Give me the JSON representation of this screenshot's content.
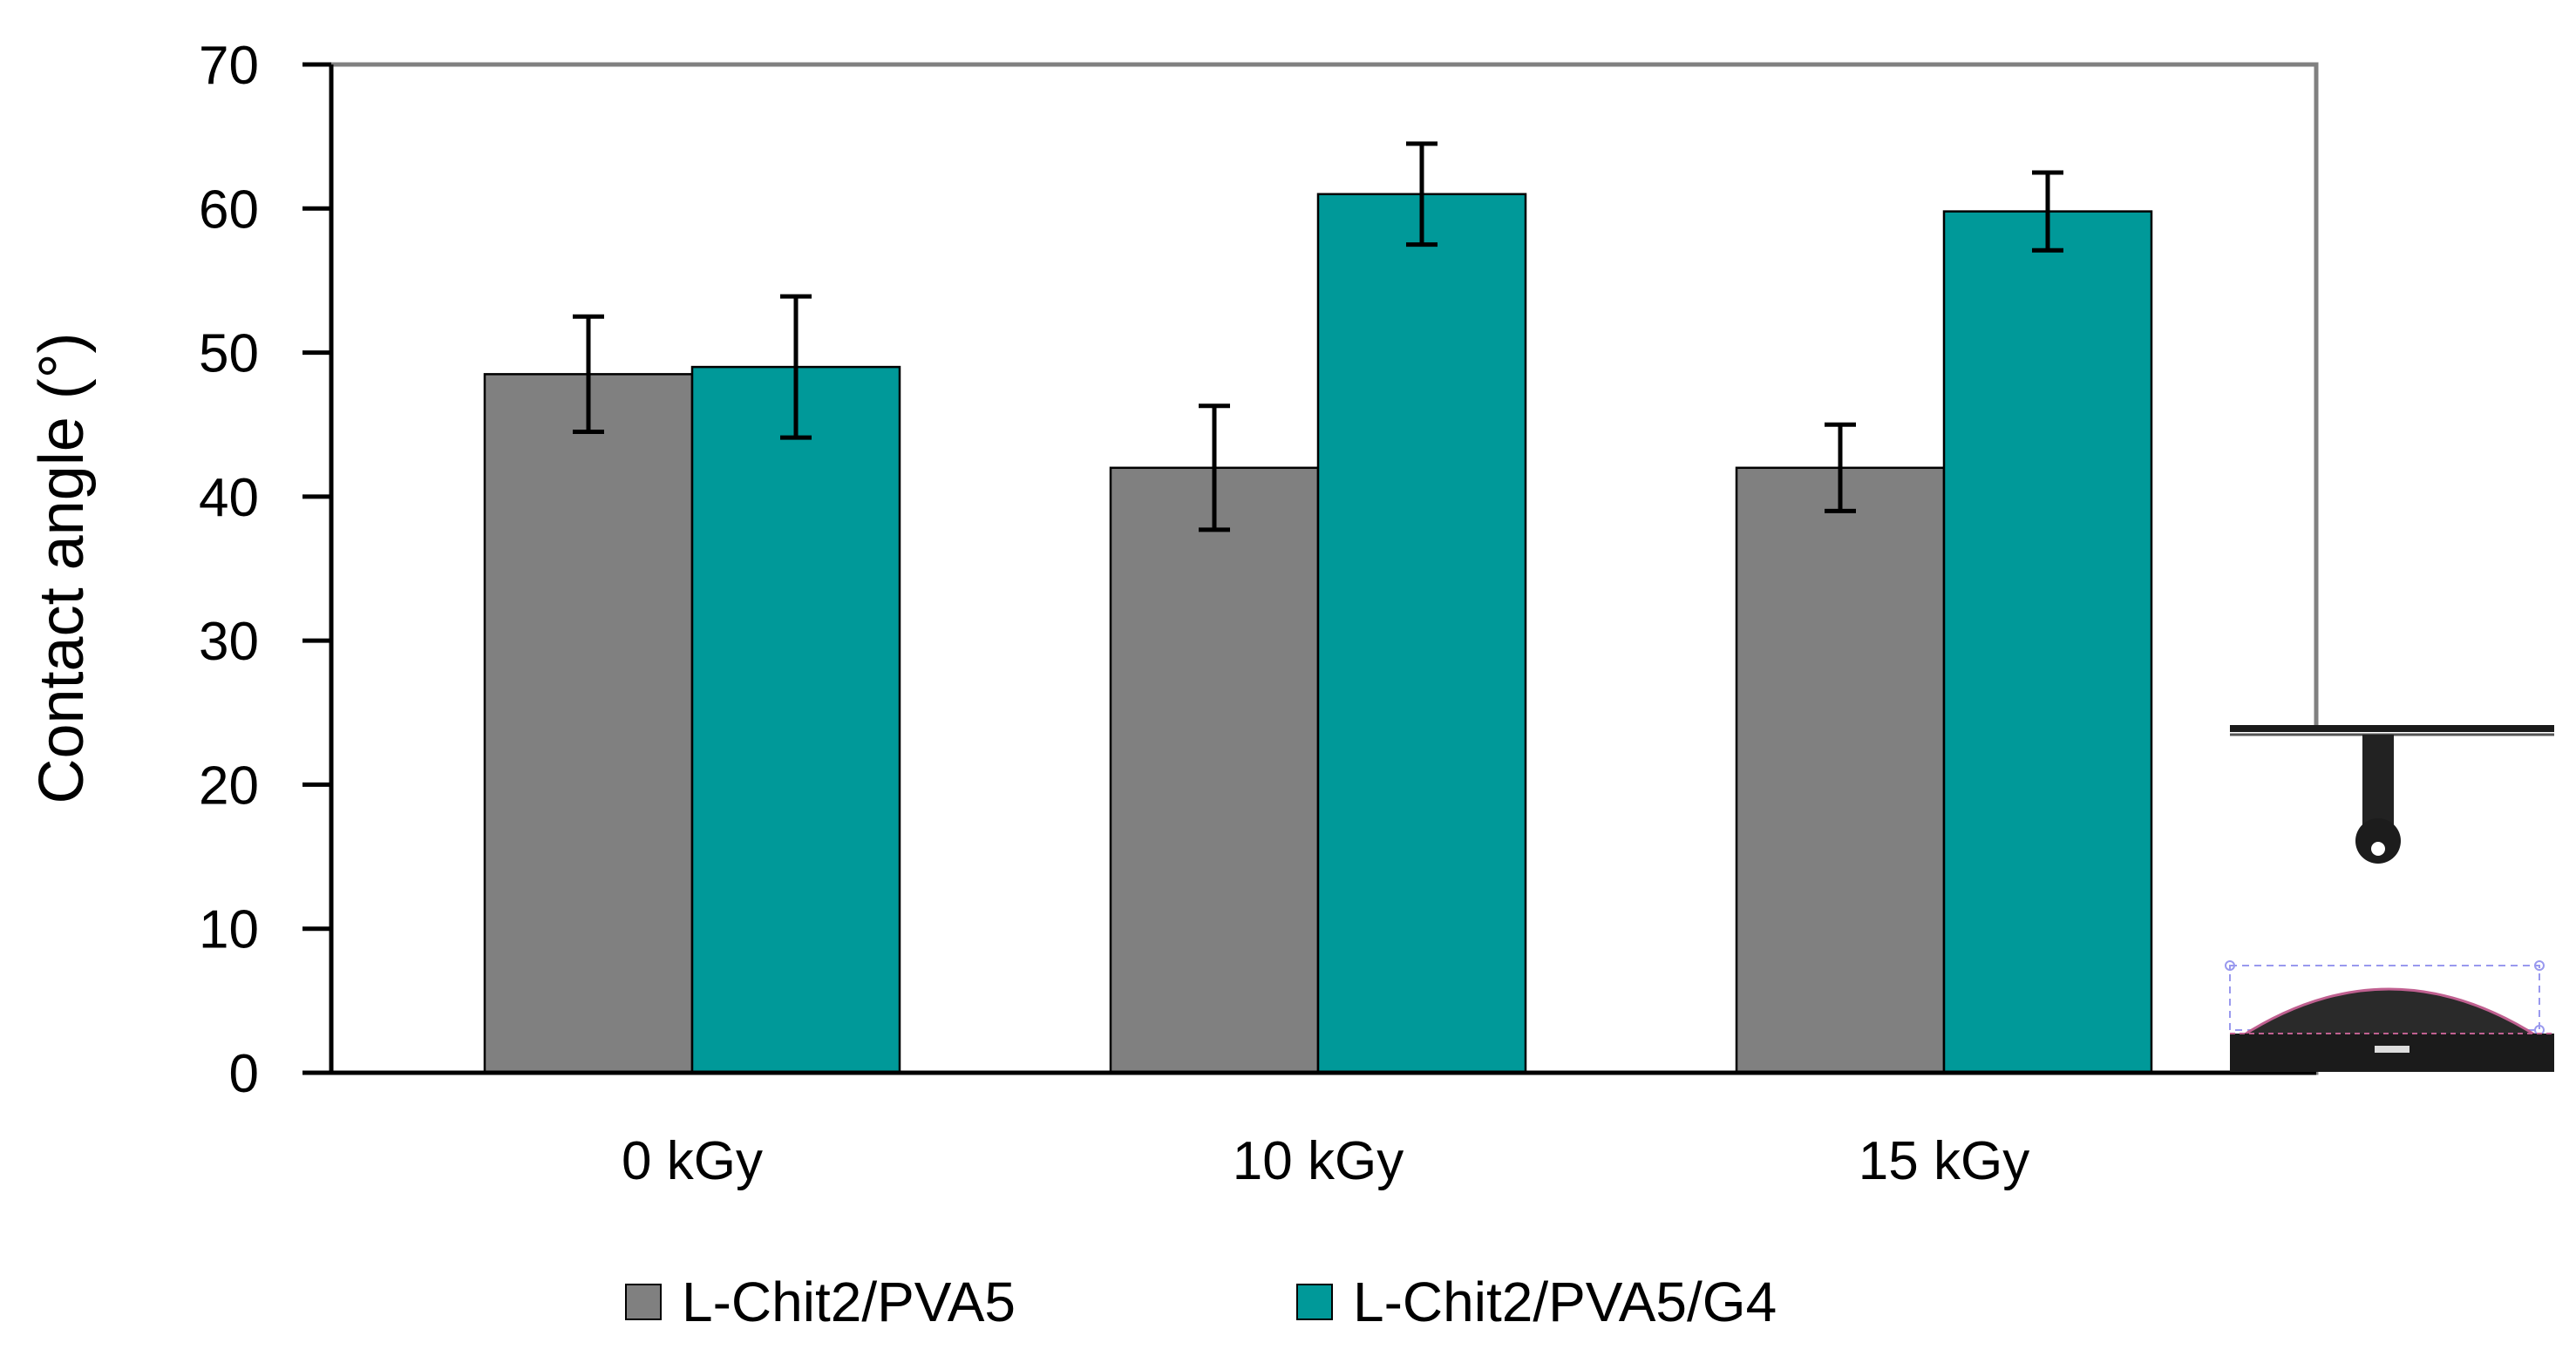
{
  "chart_data": {
    "type": "bar",
    "title": "",
    "xlabel": "",
    "ylabel": "Contact angle  (°)",
    "ylim": [
      0,
      70
    ],
    "yticks": [
      0,
      10,
      20,
      30,
      40,
      50,
      60,
      70
    ],
    "grid": false,
    "categories": [
      "0 kGy",
      "10 kGy",
      "15 kGy"
    ],
    "series": [
      {
        "name": "L-Chit2/PVA5",
        "color": "#808080",
        "values": [
          48.5,
          42,
          42
        ],
        "errors": [
          4,
          4.3,
          3
        ]
      },
      {
        "name": "L-Chit2/PVA5/G4",
        "color": "#009999",
        "values": [
          49,
          61,
          59.8
        ],
        "errors": [
          4.9,
          3.5,
          2.7
        ]
      }
    ],
    "legend_position": "bottom",
    "inset": "contact-angle droplet photograph",
    "colors": {
      "axis": "#000000",
      "frame": "#808080",
      "bar_outline": "#000000",
      "error_bar": "#000000"
    }
  }
}
